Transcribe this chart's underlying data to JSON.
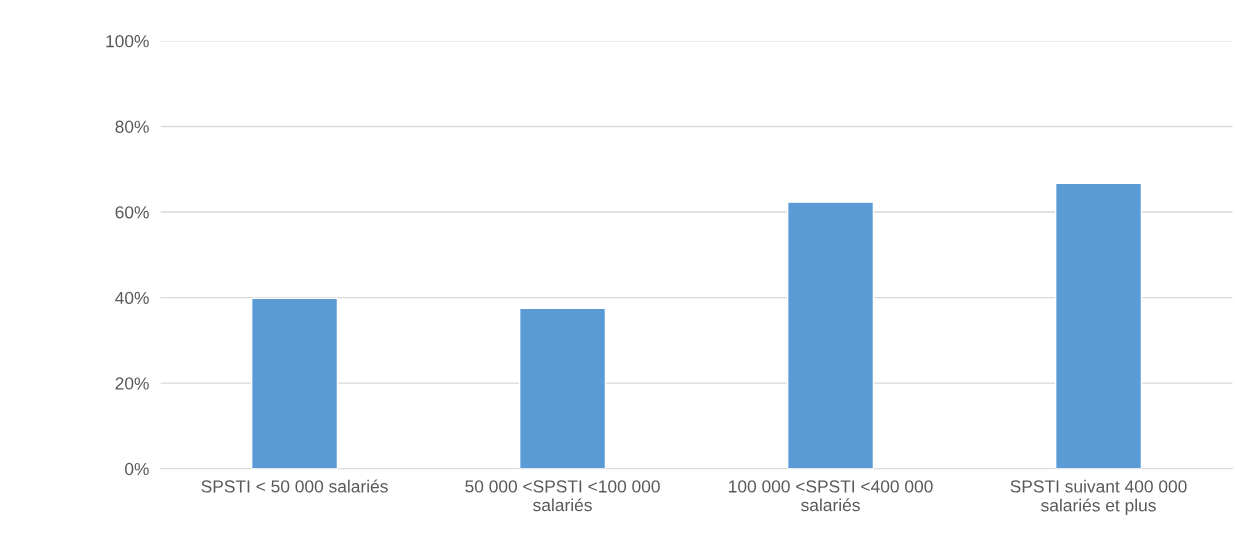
{
  "chart_data": {
    "type": "bar",
    "categories": [
      "SPSTI < 50 000 salariés",
      "50 000 <SPSTI <100 000\nsalariés",
      "100 000 <SPSTI <400 000\nsalariés",
      "SPSTI suivant 400 000\nsalariés et plus"
    ],
    "values": [
      39.8,
      37.5,
      62.3,
      66.7
    ],
    "color": "#5b9bd5",
    "ylim": [
      0,
      100
    ],
    "yticks": [
      {
        "value": 0,
        "label": "0%"
      },
      {
        "value": 20,
        "label": "20%"
      },
      {
        "value": 40,
        "label": "40%"
      },
      {
        "value": 60,
        "label": "60%"
      },
      {
        "value": 80,
        "label": "80%"
      },
      {
        "value": 100,
        "label": "100%"
      }
    ],
    "grid": "y"
  }
}
